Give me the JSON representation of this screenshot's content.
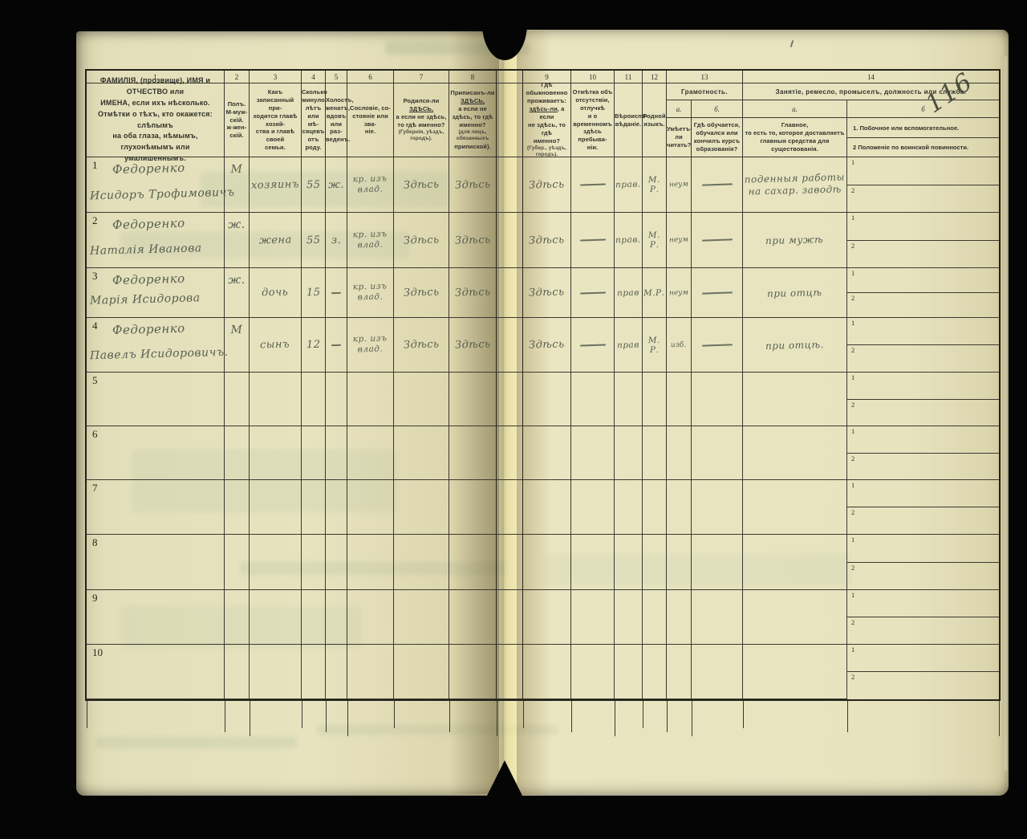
{
  "page_number": "116",
  "table": {
    "col_numbers": [
      "1",
      "2",
      "3",
      "4",
      "5",
      "6",
      "7",
      "8",
      "9",
      "10",
      "11",
      "12",
      "13",
      "14"
    ],
    "headers": {
      "c1": [
        "ФАМИЛІЯ, (прозвище), ИМЯ и ОТЧЕСТВО или",
        "ИМЕНА, если ихъ нѣсколько.",
        "Отмѣтки о тѣхъ, кто окажется: слѣпымъ",
        "на оба глаза, нѣмымъ, глухонѣмымъ или",
        "умалишеннымъ."
      ],
      "c2": [
        "Полъ.",
        "М-муж-",
        "скій.",
        "ж-жен-",
        "скій."
      ],
      "c3": [
        "Какъ записанный при-",
        "ходится главѣ хозяй-",
        "ства и главѣ своей",
        "семьи."
      ],
      "c4": [
        "Сколько",
        "минуло",
        "лѣтъ",
        "или мѣ-",
        "сяцевъ",
        "отъ роду."
      ],
      "c5": [
        "Холостъ,",
        "женатъ,",
        "вдовъ",
        "или раз-",
        "веденъ."
      ],
      "c6": [
        "Сословіе, со-",
        "стояніе или зва-",
        "ніе."
      ],
      "c7": [
        "Родился-ли |ЗДѢСЬ,|",
        "а если не здѣсь,",
        "то гдѣ именно?",
        "(Губернія, уѣздъ, городъ)."
      ],
      "c8": [
        "Приписанъ-ли |ЗДѢСЬ,|",
        "а если не здѣсь, то гдѣ",
        "именно?",
        "(для лицъ, обязанныхъ",
        "припиской)."
      ],
      "c9": [
        "Гдѣ обыкновенно",
        "проживаетъ:",
        "|здѣсь-ли|, а если",
        "не здѣсь, то гдѣ",
        "именно?",
        "(Губер., уѣздъ, городъ)."
      ],
      "c10": [
        "Отмѣтка объ",
        "отсутствіи, отлучкѣ",
        "и о временномъ",
        "здѣсь пребыва-",
        "ніи."
      ],
      "c11": [
        "Вѣроиспо-",
        "вѣданіе."
      ],
      "c12": [
        "Родной",
        "языкъ."
      ],
      "c13_title": "Грамотность.",
      "c13a_label": "а.",
      "c13b_label": "б.",
      "c13a": [
        "Умѣетъ-",
        "ли",
        "читать?"
      ],
      "c13b": [
        "Гдѣ обучается,",
        "обучался или",
        "кончилъ курсъ",
        "образованія?"
      ],
      "c14_title": "Занятіе, ремесло, промыселъ, должность или служба.",
      "c14a_label": "а.",
      "c14b_label": "б",
      "c14a": [
        "Главное,",
        "то есть то, которое доставляетъ",
        "главныя средства для существованія."
      ],
      "c14b1": "1.  Побочное или вспомогательное.",
      "c14b2": "2   Положеніе по воинской повинности.",
      "sub_labels": [
        "1",
        "2"
      ]
    },
    "rows": [
      {
        "num": "1",
        "surname": "Федоренко",
        "name": "Исидоръ Трофимовичъ",
        "sex": "М",
        "relation": "хозяинъ",
        "age": "55",
        "marital": "ж.",
        "estate": "кр. изъ\nвлад.",
        "born": "Здѣсь",
        "registered": "Здѣсь",
        "resides": "Здѣсь",
        "absence": "—",
        "religion": "прав.",
        "language": "М. Р.",
        "reads": "неум",
        "school": "—",
        "occupation": "поденныя работы\nна сахар. заводѣ",
        "side1": "",
        "side2": ""
      },
      {
        "num": "2",
        "surname": "Федоренко",
        "name": "Наталія Иванова",
        "sex": "ж.",
        "relation": "жена",
        "age": "55",
        "marital": "з.",
        "estate": "кр. изъ\nвлад.",
        "born": "Здѣсь",
        "registered": "Здѣсь",
        "resides": "Здѣсь",
        "absence": "—",
        "religion": "прав.",
        "language": "М. Р.",
        "reads": "неум",
        "school": "—",
        "occupation": "при мужѣ",
        "side1": "",
        "side2": ""
      },
      {
        "num": "3",
        "surname": "Федоренко",
        "name": "Марія Исидорова",
        "sex": "ж.",
        "relation": "дочь",
        "age": "15",
        "marital": "—",
        "estate": "кр. изъ\nвлад.",
        "born": "Здѣсь",
        "registered": "Здѣсь",
        "resides": "Здѣсь",
        "absence": "—",
        "religion": "прав",
        "language": "М.Р.",
        "reads": "неум",
        "school": "—",
        "occupation": "при отцѣ",
        "side1": "",
        "side2": ""
      },
      {
        "num": "4",
        "surname": "Федоренко",
        "name": "Павелъ Исидоровичъ.",
        "sex": "М",
        "relation": "сынъ",
        "age": "12",
        "marital": "—",
        "estate": "кр. изъ\nвлад.",
        "born": "Здѣсь",
        "registered": "Здѣсь",
        "resides": "Здѣсь",
        "absence": "—",
        "religion": "прав",
        "language": "М. Р.",
        "reads": "изб.",
        "school": "—",
        "occupation": "при отцѣ.",
        "side1": "",
        "side2": ""
      },
      {
        "num": "5",
        "surname": "",
        "name": "",
        "sex": "",
        "relation": "",
        "age": "",
        "marital": "",
        "estate": "",
        "born": "",
        "registered": "",
        "resides": "",
        "absence": "",
        "religion": "",
        "language": "",
        "reads": "",
        "school": "",
        "occupation": "",
        "side1": "",
        "side2": ""
      },
      {
        "num": "6",
        "surname": "",
        "name": "",
        "sex": "",
        "relation": "",
        "age": "",
        "marital": "",
        "estate": "",
        "born": "",
        "registered": "",
        "resides": "",
        "absence": "",
        "religion": "",
        "language": "",
        "reads": "",
        "school": "",
        "occupation": "",
        "side1": "",
        "side2": ""
      },
      {
        "num": "7",
        "surname": "",
        "name": "",
        "sex": "",
        "relation": "",
        "age": "",
        "marital": "",
        "estate": "",
        "born": "",
        "registered": "",
        "resides": "",
        "absence": "",
        "religion": "",
        "language": "",
        "reads": "",
        "school": "",
        "occupation": "",
        "side1": "",
        "side2": ""
      },
      {
        "num": "8",
        "surname": "",
        "name": "",
        "sex": "",
        "relation": "",
        "age": "",
        "marital": "",
        "estate": "",
        "born": "",
        "registered": "",
        "resides": "",
        "absence": "",
        "religion": "",
        "language": "",
        "reads": "",
        "school": "",
        "occupation": "",
        "side1": "",
        "side2": ""
      },
      {
        "num": "9",
        "surname": "",
        "name": "",
        "sex": "",
        "relation": "",
        "age": "",
        "marital": "",
        "estate": "",
        "born": "",
        "registered": "",
        "resides": "",
        "absence": "",
        "religion": "",
        "language": "",
        "reads": "",
        "school": "",
        "occupation": "",
        "side1": "",
        "side2": ""
      },
      {
        "num": "10",
        "surname": "",
        "name": "",
        "sex": "",
        "relation": "",
        "age": "",
        "marital": "",
        "estate": "",
        "born": "",
        "registered": "",
        "resides": "",
        "absence": "",
        "religion": "",
        "language": "",
        "reads": "",
        "school": "",
        "occupation": "",
        "side1": "",
        "side2": ""
      }
    ]
  }
}
